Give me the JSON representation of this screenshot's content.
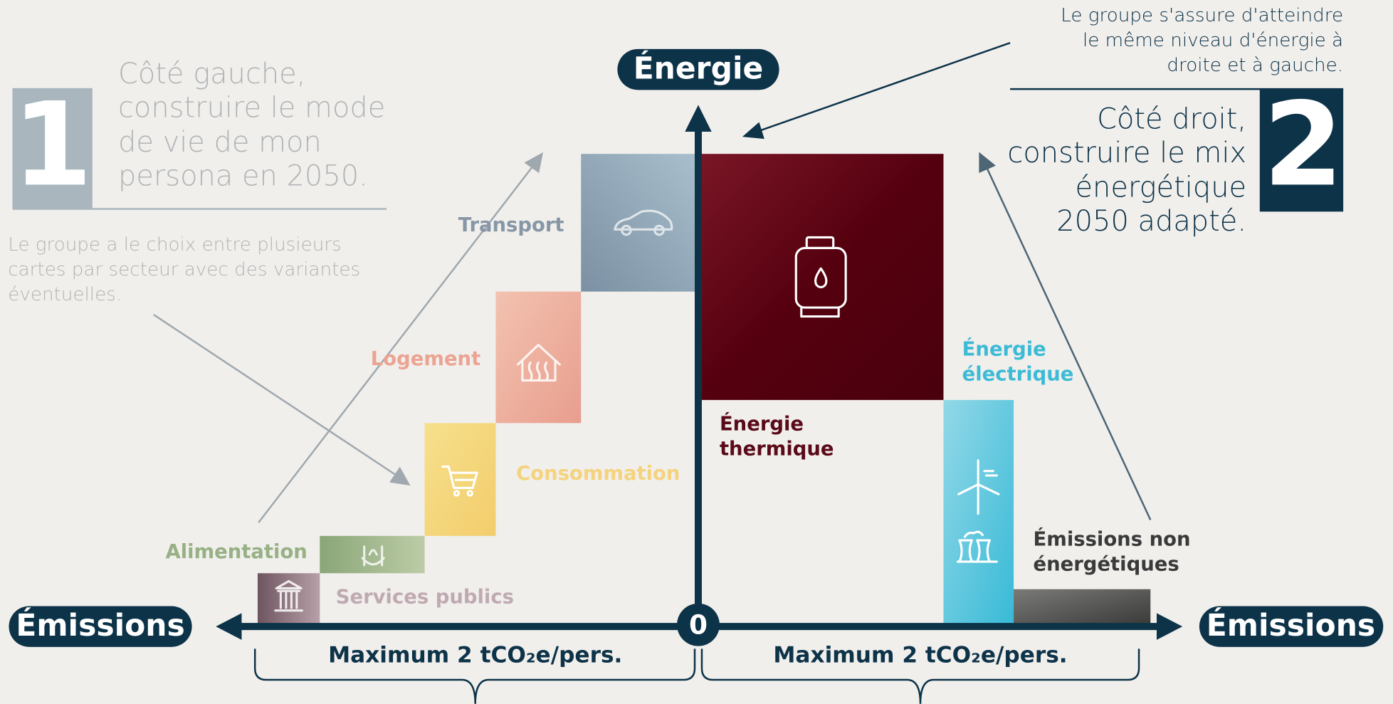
{
  "left": {
    "number": "1",
    "title": [
      "Côté gauche,",
      "construire le mode",
      "de vie de mon",
      "persona en 2050."
    ],
    "note": [
      "Le groupe a le choix entre plusieurs",
      "cartes par secteur avec des variantes",
      "éventuelles."
    ]
  },
  "right": {
    "number": "2",
    "title": [
      "Côté droit,",
      "construire le mix",
      "énergétique",
      "2050 adapté."
    ],
    "note": [
      "Le groupe s'assure d'atteindre",
      "le même niveau d'énergie à",
      "droite et à gauche."
    ]
  },
  "axes": {
    "energy": "Énergie",
    "emissions_left": "Émissions",
    "emissions_right": "Émissions",
    "origin": "0"
  },
  "sectors": [
    "Transport",
    "Logement",
    "Consommation",
    "Alimentation",
    "Services publics"
  ],
  "energy_mix": {
    "thermal": [
      "Énergie",
      "thermique"
    ],
    "electric": [
      "Énergie",
      "électrique"
    ],
    "non_energy": [
      "Émissions non",
      "énergétiques"
    ]
  },
  "brackets": [
    "Maximum 2 tCO₂e/pers.",
    "Maximum 2 tCO₂e/pers."
  ]
}
